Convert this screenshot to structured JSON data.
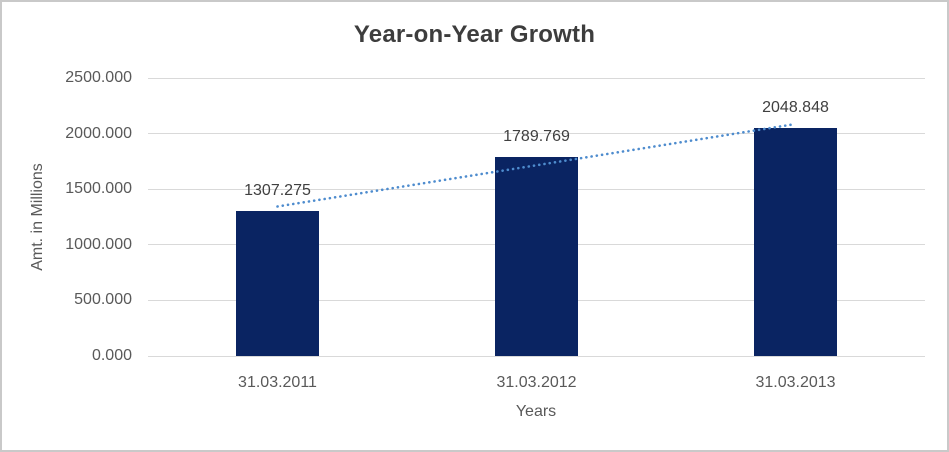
{
  "chart_data": {
    "type": "bar",
    "title": "Year-on-Year Growth",
    "xlabel": "Years",
    "ylabel": "Amt. in Millions",
    "categories": [
      "31.03.2011",
      "31.03.2012",
      "31.03.2013"
    ],
    "values": [
      1307.275,
      1789.769,
      2048.848
    ],
    "value_labels": [
      "1307.275",
      "1789.769",
      "2048.848"
    ],
    "ylim": [
      0,
      2500
    ],
    "yticks": [
      0,
      500,
      1000,
      1500,
      2000,
      2500
    ],
    "ytick_labels": [
      "0.000",
      "500.000",
      "1000.000",
      "1500.000",
      "2000.000",
      "2500.000"
    ],
    "grid": true,
    "legend": "none",
    "trendline": {
      "type": "linear",
      "style": "dotted"
    }
  },
  "colors": {
    "bar": "#0a2462",
    "trendline": "#4e8cce",
    "gridline": "#d9d9d9",
    "axis_text": "#595959",
    "label_text": "#404040",
    "title_text": "#3d3d3d",
    "border": "#c9c9c9",
    "background": "#ffffff"
  }
}
